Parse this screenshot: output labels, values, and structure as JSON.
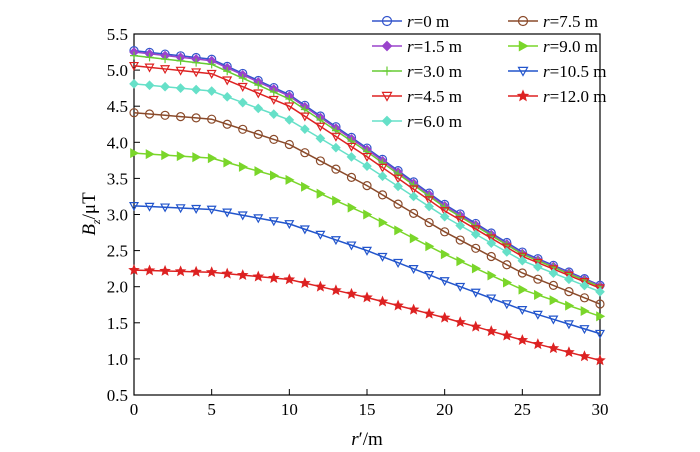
{
  "chart_data": {
    "type": "line",
    "xlabel_parts": [
      "r",
      "′",
      "/m"
    ],
    "ylabel_parts": [
      "B",
      "z",
      "/μT"
    ],
    "xlim": [
      0,
      30
    ],
    "ylim": [
      0.5,
      5.5
    ],
    "xticks": [
      "0",
      "5",
      "10",
      "15",
      "20",
      "25",
      "30"
    ],
    "yticks": [
      "0.5",
      "1.0",
      "1.5",
      "2.0",
      "2.5",
      "3.0",
      "3.5",
      "4.0",
      "4.5",
      "5.0",
      "5.5"
    ],
    "grid": false,
    "legend_position": "top-right",
    "series": [
      {
        "name": "r=0 m",
        "label_var": "r",
        "label_rest": "=0 m",
        "color": "#3355cc",
        "marker": "circle",
        "key_points": [
          [
            0,
            5.27
          ],
          [
            5,
            5.15
          ],
          [
            10,
            4.66
          ],
          [
            15,
            3.92
          ],
          [
            20,
            3.14
          ],
          [
            25,
            2.48
          ],
          [
            30,
            2.02
          ]
        ]
      },
      {
        "name": "r=1.5 m",
        "label_var": "r",
        "label_rest": "=1.5 m",
        "color": "#9a44cc",
        "marker": "diamond",
        "key_points": [
          [
            0,
            5.25
          ],
          [
            5,
            5.13
          ],
          [
            10,
            4.64
          ],
          [
            15,
            3.9
          ],
          [
            20,
            3.12
          ],
          [
            25,
            2.46
          ],
          [
            30,
            2.01
          ]
        ]
      },
      {
        "name": "r=3.0 m",
        "label_var": "r",
        "label_rest": "=3.0 m",
        "color": "#66cc33",
        "marker": "plus",
        "key_points": [
          [
            0,
            5.2
          ],
          [
            5,
            5.08
          ],
          [
            10,
            4.6
          ],
          [
            15,
            3.87
          ],
          [
            20,
            3.1
          ],
          [
            25,
            2.45
          ],
          [
            30,
            2.0
          ]
        ]
      },
      {
        "name": "r=4.5 m",
        "label_var": "r",
        "label_rest": "=4.5 m",
        "color": "#dd2222",
        "marker": "triangle-down",
        "key_points": [
          [
            0,
            5.06
          ],
          [
            5,
            4.95
          ],
          [
            10,
            4.5
          ],
          [
            15,
            3.8
          ],
          [
            20,
            3.05
          ],
          [
            25,
            2.42
          ],
          [
            30,
            1.98
          ]
        ]
      },
      {
        "name": "r=6.0 m",
        "label_var": "r",
        "label_rest": "=6.0 m",
        "color": "#66e0c8",
        "marker": "diamond",
        "key_points": [
          [
            0,
            4.81
          ],
          [
            5,
            4.71
          ],
          [
            10,
            4.31
          ],
          [
            15,
            3.67
          ],
          [
            20,
            2.97
          ],
          [
            25,
            2.36
          ],
          [
            30,
            1.93
          ]
        ]
      },
      {
        "name": "r=7.5 m",
        "label_var": "r",
        "label_rest": "=7.5 m",
        "color": "#8a4a2a",
        "marker": "circle",
        "key_points": [
          [
            0,
            4.41
          ],
          [
            5,
            4.32
          ],
          [
            10,
            3.97
          ],
          [
            15,
            3.4
          ],
          [
            20,
            2.76
          ],
          [
            25,
            2.19
          ],
          [
            30,
            1.76
          ]
        ]
      },
      {
        "name": "r=9.0 m",
        "label_var": "r",
        "label_rest": "=9.0 m",
        "color": "#7ad62a",
        "marker": "triangle-right",
        "key_points": [
          [
            0,
            3.85
          ],
          [
            5,
            3.78
          ],
          [
            10,
            3.48
          ],
          [
            15,
            3.0
          ],
          [
            20,
            2.45
          ],
          [
            25,
            1.96
          ],
          [
            30,
            1.59
          ]
        ]
      },
      {
        "name": "r=10.5 m",
        "label_var": "r",
        "label_rest": "=10.5 m",
        "color": "#2255cc",
        "marker": "triangle-down",
        "key_points": [
          [
            0,
            3.12
          ],
          [
            5,
            3.07
          ],
          [
            10,
            2.87
          ],
          [
            15,
            2.5
          ],
          [
            20,
            2.08
          ],
          [
            25,
            1.68
          ],
          [
            30,
            1.35
          ]
        ]
      },
      {
        "name": "r=12.0 m",
        "label_var": "r",
        "label_rest": "=12.0 m",
        "color": "#dd2222",
        "marker": "star",
        "key_points": [
          [
            0,
            2.23
          ],
          [
            5,
            2.2
          ],
          [
            10,
            2.1
          ],
          [
            15,
            1.85
          ],
          [
            20,
            1.57
          ],
          [
            25,
            1.26
          ],
          [
            30,
            0.98
          ]
        ]
      }
    ]
  }
}
